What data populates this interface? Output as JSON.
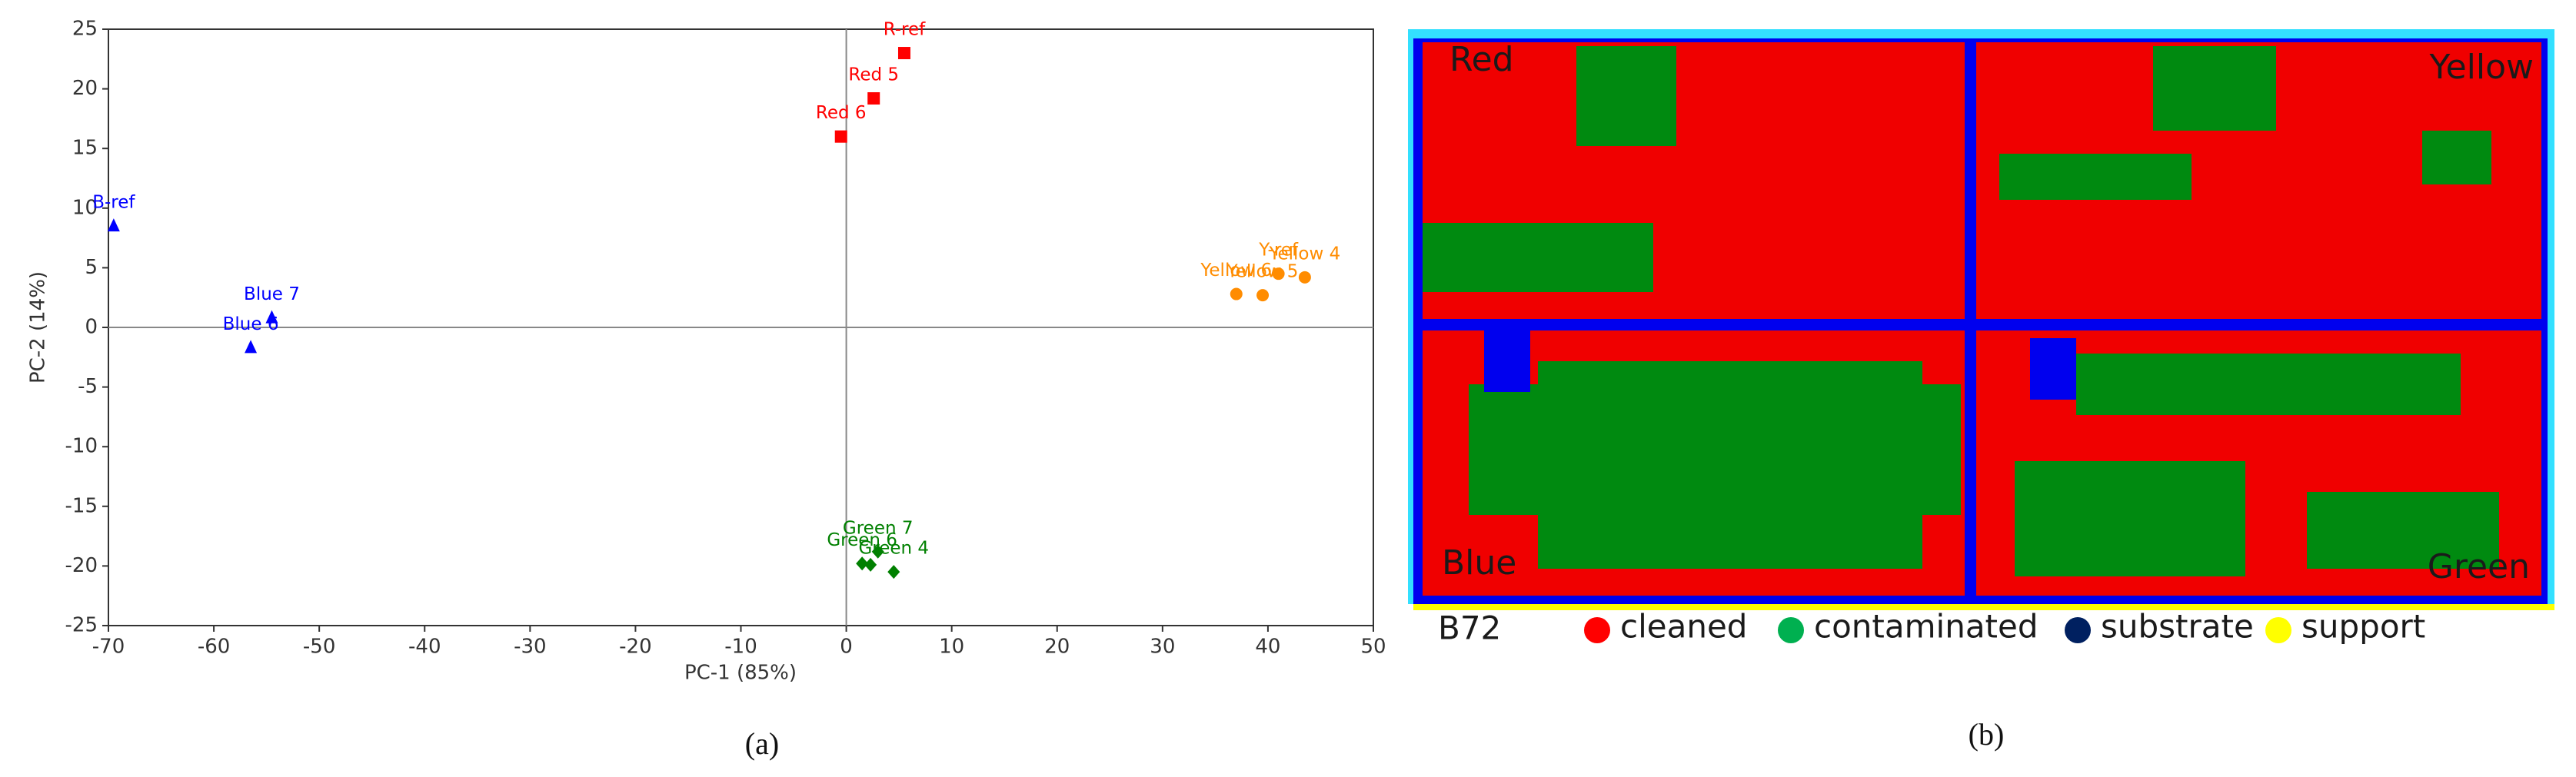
{
  "chart_data": {
    "type": "scatter",
    "xlabel": "PC-1 (85%)",
    "ylabel": "PC-2 (14%)",
    "xlim": [
      -70,
      50
    ],
    "ylim": [
      -25,
      25
    ],
    "xticks": [
      -70,
      -60,
      -50,
      -40,
      -30,
      -20,
      -10,
      0,
      10,
      20,
      30,
      40,
      50
    ],
    "yticks": [
      -25,
      -20,
      -15,
      -10,
      -5,
      0,
      5,
      10,
      15,
      20,
      25
    ],
    "series": [
      {
        "color": "#ff0000",
        "marker": "square",
        "x": [
          5.5,
          2.6,
          -0.5
        ],
        "values": [
          23,
          19.2,
          16
        ],
        "point_labels": [
          "R-ref",
          "Red 5",
          "Red 6"
        ]
      },
      {
        "color": "#0000ff",
        "marker": "triangle",
        "x": [
          -69.5,
          -54.5,
          -56.5
        ],
        "values": [
          8.5,
          0.8,
          -1.7
        ],
        "point_labels": [
          "B-ref",
          "Blue 7",
          "Blue 6"
        ]
      },
      {
        "color": "#ff8c00",
        "marker": "circle",
        "x": [
          37,
          39.5,
          41,
          43.5
        ],
        "values": [
          2.8,
          2.7,
          4.5,
          4.2
        ],
        "point_labels": [
          "Yellow 6",
          "Yellow 5",
          "Y-ref",
          "Yellow 4"
        ]
      },
      {
        "color": "#008000",
        "marker": "diamond",
        "x": [
          1.5,
          2.3,
          3,
          4.5
        ],
        "values": [
          -19.8,
          -19.9,
          -18.8,
          -20.5
        ],
        "point_labels": [
          "Green 6",
          null,
          "Green 7",
          "Green 4"
        ]
      }
    ]
  },
  "panel_b": {
    "quadrants": [
      "Red",
      "Yellow",
      "Blue",
      "Green"
    ],
    "legend_title": "B72",
    "legend": [
      {
        "label": "cleaned",
        "color": "#ff0000"
      },
      {
        "label": "contaminated",
        "color": "#00b050"
      },
      {
        "label": "substrate",
        "color": "#002060"
      },
      {
        "label": "support",
        "color": "#ffff00"
      }
    ]
  },
  "captions": [
    "(a)",
    "(b)"
  ]
}
